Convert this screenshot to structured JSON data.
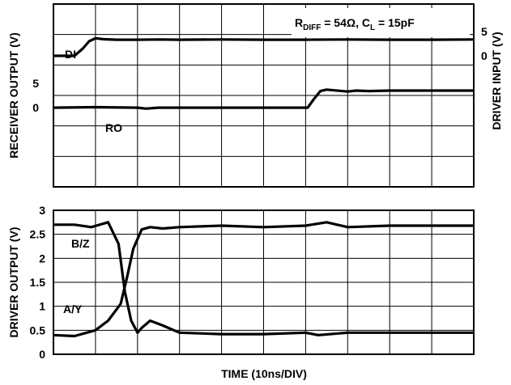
{
  "chart_data": [
    {
      "type": "line",
      "title": "",
      "annotation_main": "R",
      "annotation_sub1": "DIFF",
      "annotation_rest1": " = 54Ω, C",
      "annotation_sub2": "L",
      "annotation_rest2": " = 15pF",
      "ylabel_left": "RECEIVER OUTPUT (V)",
      "ylabel_right": "DRIVER INPUT (V)",
      "xlabel": "",
      "grid": true,
      "x_divisions": 10,
      "y_divisions": 6,
      "x_unit_per_div": "10ns",
      "right_ticks": [
        {
          "label": "5",
          "div": 0.9
        },
        {
          "label": "0",
          "div": 1.7
        }
      ],
      "left_ticks": [
        {
          "label": "5",
          "div": 2.6
        },
        {
          "label": "0",
          "div": 3.4
        }
      ],
      "series": [
        {
          "name": "DI",
          "axis": "right",
          "x": [
            0,
            0.5,
            0.7,
            0.85,
            1.0,
            1.2,
            1.5,
            2,
            2.5,
            3,
            4,
            5,
            6,
            7,
            8,
            9,
            10
          ],
          "y": [
            0,
            0,
            1.5,
            3.0,
            3.6,
            3.4,
            3.3,
            3.3,
            3.35,
            3.3,
            3.35,
            3.3,
            3.3,
            3.35,
            3.3,
            3.3,
            3.35
          ]
        },
        {
          "name": "RO",
          "axis": "left",
          "x": [
            0,
            1,
            2,
            2.2,
            2.5,
            3,
            4,
            5,
            6.05,
            6.2,
            6.35,
            6.5,
            7,
            7.2,
            7.5,
            8,
            9,
            10
          ],
          "y": [
            0,
            0.1,
            0,
            -0.2,
            0,
            0,
            0,
            0,
            0,
            1.8,
            3.4,
            3.7,
            3.3,
            3.5,
            3.4,
            3.5,
            3.5,
            3.5
          ]
        }
      ]
    },
    {
      "type": "line",
      "title": "",
      "ylabel": "DRIVER OUTPUT (V)",
      "xlabel": "TIME (10ns/DIV)",
      "grid": true,
      "x_divisions": 10,
      "ylim": [
        0,
        3
      ],
      "yticks": [
        "0",
        "0.5",
        "1",
        "1.5",
        "2",
        "2.5",
        "3"
      ],
      "series": [
        {
          "name": "B/Z",
          "x": [
            0,
            0.5,
            0.9,
            1.3,
            1.55,
            1.7,
            1.85,
            2.0,
            2.1,
            2.3,
            2.6,
            3,
            4,
            5,
            6,
            6.3,
            7,
            8,
            9,
            10
          ],
          "y": [
            2.7,
            2.7,
            2.65,
            2.75,
            2.3,
            1.3,
            0.7,
            0.45,
            0.55,
            0.7,
            0.6,
            0.45,
            0.42,
            0.42,
            0.45,
            0.4,
            0.45,
            0.45,
            0.45,
            0.45
          ]
        },
        {
          "name": "A/Y",
          "x": [
            0,
            0.5,
            1.0,
            1.3,
            1.6,
            1.75,
            1.9,
            2.1,
            2.3,
            2.6,
            3,
            4,
            5,
            6,
            6.5,
            7,
            8,
            9,
            10
          ],
          "y": [
            0.4,
            0.38,
            0.5,
            0.7,
            1.05,
            1.6,
            2.2,
            2.6,
            2.65,
            2.62,
            2.65,
            2.68,
            2.65,
            2.68,
            2.75,
            2.65,
            2.68,
            2.68,
            2.68
          ]
        }
      ]
    }
  ]
}
